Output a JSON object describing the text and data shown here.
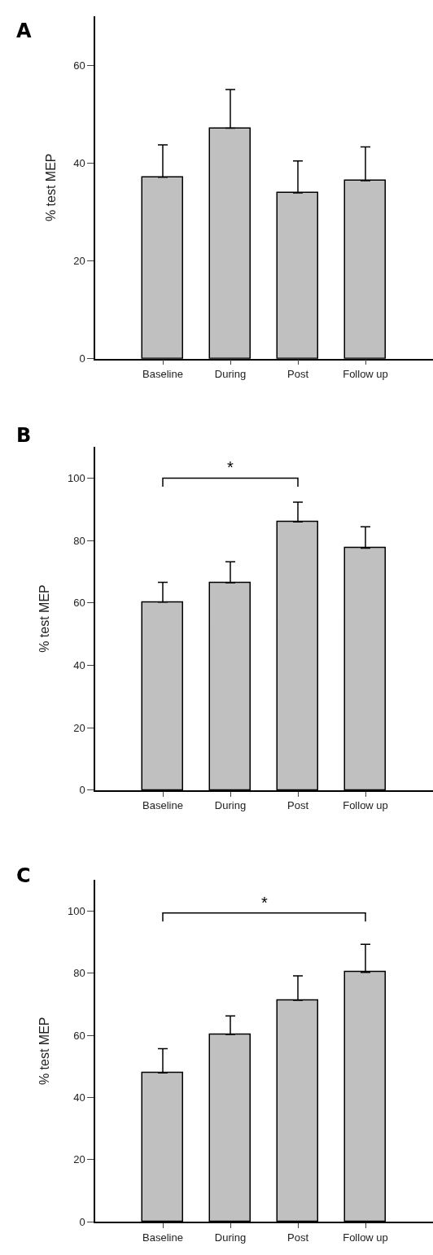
{
  "chart_data": [
    {
      "type": "bar",
      "title": "A",
      "ylabel": "% test MEP",
      "categories": [
        "Baseline",
        "During",
        "Post",
        "Follow up"
      ],
      "values": [
        37.1,
        47.1,
        33.9,
        36.4
      ],
      "errors": [
        6.6,
        7.9,
        6.5,
        6.9
      ],
      "color": "#c0c0c0",
      "ylim": [
        0,
        70
      ],
      "yticks": [
        0,
        20,
        40,
        60
      ]
    },
    {
      "type": "bar",
      "title": "B",
      "ylabel": "% test MEP",
      "categories": [
        "Baseline",
        "During",
        "Post",
        "Follow up"
      ],
      "values": [
        60.3,
        66.5,
        86.0,
        77.6
      ],
      "errors": [
        6.3,
        6.7,
        6.3,
        6.8
      ],
      "color": "#c0c0c0",
      "ylim": [
        0,
        110
      ],
      "yticks": [
        0,
        20,
        40,
        60,
        80,
        100
      ],
      "annotations": [
        "*"
      ]
    },
    {
      "type": "bar",
      "title": "C",
      "ylabel": "% test MEP",
      "categories": [
        "Baseline",
        "During",
        "Post",
        "Follow up"
      ],
      "values": [
        47.9,
        60.3,
        71.3,
        80.3
      ],
      "errors": [
        7.8,
        6.0,
        7.9,
        9.0
      ],
      "color": "#c0c0c0",
      "ylim": [
        0,
        110
      ],
      "yticks": [
        0,
        20,
        40,
        60,
        80,
        100
      ],
      "annotations": [
        "*"
      ]
    }
  ]
}
